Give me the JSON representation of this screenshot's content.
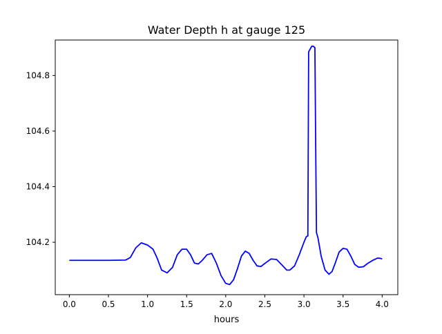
{
  "chart_data": {
    "type": "line",
    "title": "Water Depth h at gauge 125",
    "xlabel": "hours",
    "ylabel": "",
    "xlim": [
      -0.18,
      4.2
    ],
    "ylim": [
      104.0115,
      104.9275
    ],
    "grid": false,
    "line_color": "#0000ff",
    "x_ticks": [
      {
        "value": 0.0,
        "label": "0.0"
      },
      {
        "value": 0.5,
        "label": "0.5"
      },
      {
        "value": 1.0,
        "label": "1.0"
      },
      {
        "value": 1.5,
        "label": "1.5"
      },
      {
        "value": 2.0,
        "label": "2.0"
      },
      {
        "value": 2.5,
        "label": "2.5"
      },
      {
        "value": 3.0,
        "label": "3.0"
      },
      {
        "value": 3.5,
        "label": "3.5"
      },
      {
        "value": 4.0,
        "label": "4.0"
      }
    ],
    "y_ticks": [
      {
        "value": 104.2,
        "label": "104.2"
      },
      {
        "value": 104.4,
        "label": "104.4"
      },
      {
        "value": 104.6,
        "label": "104.6"
      },
      {
        "value": 104.8,
        "label": "104.8"
      }
    ],
    "series": [
      {
        "name": "",
        "x": [
          0.0,
          0.5,
          0.72,
          0.78,
          0.85,
          0.92,
          1.0,
          1.07,
          1.12,
          1.18,
          1.25,
          1.32,
          1.38,
          1.44,
          1.5,
          1.55,
          1.6,
          1.65,
          1.7,
          1.76,
          1.82,
          1.88,
          1.94,
          2.0,
          2.05,
          2.1,
          2.15,
          2.2,
          2.25,
          2.3,
          2.35,
          2.4,
          2.45,
          2.52,
          2.58,
          2.65,
          2.72,
          2.78,
          2.82,
          2.88,
          2.94,
          3.0,
          3.03,
          3.05,
          3.06,
          3.08,
          3.1,
          3.12,
          3.14,
          3.15,
          3.16,
          3.18,
          3.22,
          3.27,
          3.32,
          3.36,
          3.4,
          3.45,
          3.5,
          3.55,
          3.6,
          3.65,
          3.7,
          3.76,
          3.82,
          3.88,
          3.94,
          3.98,
          4.0
        ],
        "y": [
          104.135,
          104.135,
          104.136,
          104.145,
          104.18,
          104.198,
          104.19,
          104.175,
          104.145,
          104.1,
          104.09,
          104.11,
          104.155,
          104.175,
          104.175,
          104.155,
          104.125,
          104.122,
          104.135,
          104.155,
          104.16,
          104.125,
          104.08,
          104.052,
          104.048,
          104.065,
          104.105,
          104.15,
          104.168,
          104.16,
          104.135,
          104.115,
          104.113,
          104.128,
          104.14,
          104.138,
          104.118,
          104.1,
          104.1,
          104.115,
          104.155,
          104.2,
          104.22,
          104.223,
          104.885,
          104.895,
          104.905,
          104.905,
          104.9,
          104.55,
          104.235,
          104.215,
          104.15,
          104.1,
          104.085,
          104.095,
          104.125,
          104.165,
          104.178,
          104.175,
          104.15,
          104.12,
          104.11,
          104.112,
          104.125,
          104.135,
          104.143,
          104.142,
          104.14
        ]
      }
    ]
  }
}
